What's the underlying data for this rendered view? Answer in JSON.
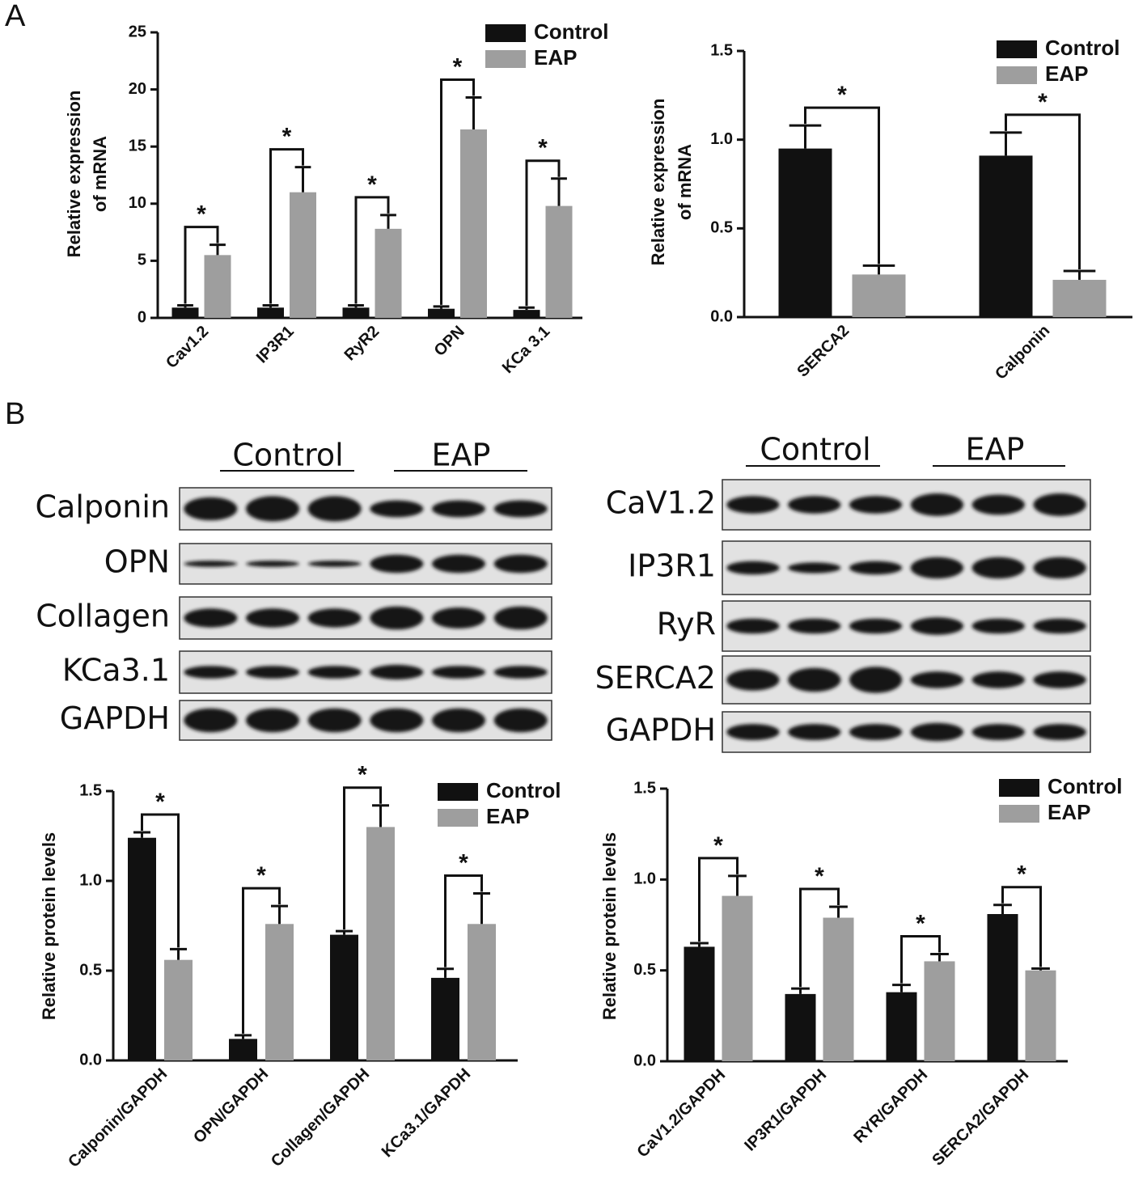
{
  "panels": [
    "A",
    "B"
  ],
  "chart_data": [
    {
      "type": "bar",
      "ylabel": [
        "Relative expression",
        "of  mRNA"
      ],
      "categories": [
        "Cav1.2",
        "IP3R1",
        "RyR2",
        "OPN",
        "KCa 3.1"
      ],
      "series": [
        {
          "name": "Control",
          "color": "#111111",
          "values": [
            0.9,
            0.9,
            0.9,
            0.8,
            0.7
          ],
          "errors": [
            0.2,
            0.2,
            0.2,
            0.2,
            0.2
          ]
        },
        {
          "name": "EAP",
          "color": "#9e9e9e",
          "values": [
            5.5,
            11.0,
            7.8,
            16.5,
            9.8
          ],
          "errors": [
            0.9,
            2.2,
            1.2,
            2.8,
            2.4
          ]
        }
      ],
      "significance": [
        "*",
        "*",
        "*",
        "*",
        "*"
      ],
      "ylim": [
        0,
        25
      ],
      "yticks": [
        0,
        5,
        10,
        15,
        20,
        25
      ],
      "legend": "upper right"
    },
    {
      "type": "bar",
      "ylabel": [
        "Relative expression",
        "of  mRNA"
      ],
      "categories": [
        "SERCA2",
        "Calponin"
      ],
      "series": [
        {
          "name": "Control",
          "color": "#111111",
          "values": [
            0.95,
            0.91
          ],
          "errors": [
            0.13,
            0.13
          ]
        },
        {
          "name": "EAP",
          "color": "#9e9e9e",
          "values": [
            0.24,
            0.21
          ],
          "errors": [
            0.05,
            0.05
          ]
        }
      ],
      "significance": [
        "*",
        "*"
      ],
      "ylim": [
        0,
        1.5
      ],
      "yticks": [
        {
          "value": 0,
          "label": "0.0"
        },
        0.5,
        {
          "value": 1,
          "label": "1.0"
        },
        1.5
      ],
      "legend": "upper right"
    },
    {
      "type": "bar",
      "ylabel": [
        "Relative protein levels"
      ],
      "categories": [
        "Calponin/GAPDH",
        "OPN/GAPDH",
        "Collagen/GAPDH",
        "KCa3.1/GAPDH"
      ],
      "series": [
        {
          "name": "Control",
          "color": "#111111",
          "values": [
            1.24,
            0.12,
            0.7,
            0.46
          ],
          "errors": [
            0.03,
            0.02,
            0.02,
            0.05
          ]
        },
        {
          "name": "EAP",
          "color": "#9e9e9e",
          "values": [
            0.56,
            0.76,
            1.3,
            0.76
          ],
          "errors": [
            0.06,
            0.1,
            0.12,
            0.17
          ]
        }
      ],
      "significance": [
        "*",
        "*",
        "*",
        "*"
      ],
      "ylim": [
        0,
        1.5
      ],
      "yticks": [
        {
          "value": 0,
          "label": "0.0"
        },
        0.5,
        {
          "value": 1,
          "label": "1.0"
        },
        1.5
      ],
      "legend": "upper right"
    },
    {
      "type": "bar",
      "ylabel": [
        "Relative protein levels"
      ],
      "categories": [
        "CaV1.2/GAPDH",
        "IP3R1/GAPDH",
        "RYR/GAPDH",
        "SERCA2/GAPDH"
      ],
      "series": [
        {
          "name": "Control",
          "color": "#111111",
          "values": [
            0.63,
            0.37,
            0.38,
            0.81
          ],
          "errors": [
            0.02,
            0.03,
            0.04,
            0.05
          ]
        },
        {
          "name": "EAP",
          "color": "#9e9e9e",
          "values": [
            0.91,
            0.79,
            0.55,
            0.5
          ],
          "errors": [
            0.11,
            0.06,
            0.04,
            0.01
          ]
        }
      ],
      "significance": [
        "*",
        "*",
        "*",
        "*"
      ],
      "ylim": [
        0,
        1.5
      ],
      "yticks": [
        {
          "value": 0,
          "label": "0.0"
        },
        0.5,
        {
          "value": 1,
          "label": "1.0"
        },
        1.5
      ],
      "legend": "upper right"
    }
  ],
  "blots": [
    {
      "groups": [
        "Control",
        "EAP"
      ],
      "rows": [
        "Calponin",
        "OPN",
        "Collagen",
        "KCa3.1",
        "GAPDH"
      ]
    },
    {
      "groups": [
        "Control",
        "EAP"
      ],
      "rows": [
        "CaV1.2",
        "IP3R1",
        "RyR",
        "SERCA2",
        "GAPDH"
      ]
    }
  ]
}
